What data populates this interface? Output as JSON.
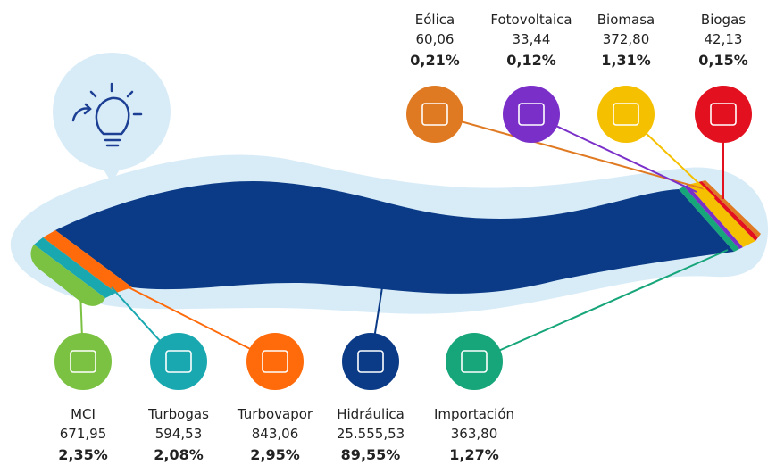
{
  "sources_top": [
    {
      "name": "Eólica",
      "value": "60,06",
      "share": "0,21%"
    },
    {
      "name": "Fotovoltaica",
      "value": "33,44",
      "share": "0,12%"
    },
    {
      "name": "Biomasa",
      "value": "372,80",
      "share": "1,31%"
    },
    {
      "name": "Biogas",
      "value": "42,13",
      "share": "0,15%"
    }
  ],
  "sources_bottom": [
    {
      "name": "MCI",
      "value": "671,95",
      "share": "2,35%"
    },
    {
      "name": "Turbogas",
      "value": "594,53",
      "share": "2,08%"
    },
    {
      "name": "Turbovapor",
      "value": "843,06",
      "share": "2,95%"
    },
    {
      "name": "Hidráulica",
      "value": "25.555,53",
      "share": "89,55%"
    },
    {
      "name": "Importación",
      "value": "363,80",
      "share": "1,27%"
    }
  ]
}
